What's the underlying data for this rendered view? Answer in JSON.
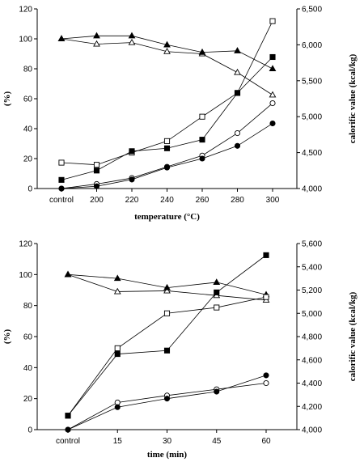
{
  "chart_data": [
    {
      "type": "line",
      "categories": [
        "control",
        "200",
        "220",
        "240",
        "260",
        "280",
        "300"
      ],
      "xlabel": "temperature (°C)",
      "ylabel": "(%)",
      "ylabel_right": "calorific value (kcal/kg)",
      "ylim": [
        0,
        120
      ],
      "ylim_right": [
        4000,
        6500
      ],
      "yticks": [
        "0",
        "20",
        "40",
        "60",
        "80",
        "100",
        "120"
      ],
      "yticks_right": [
        "4,000",
        "4,500",
        "5,000",
        "5,500",
        "6,000",
        "6,500"
      ],
      "grid": false,
      "series": [
        {
          "marker": "open-triangle",
          "axis": "left",
          "values": [
            100,
            96.5,
            97.5,
            91.5,
            90,
            77.5,
            62.5
          ]
        },
        {
          "marker": "filled-triangle",
          "axis": "left",
          "values": [
            100,
            102,
            102,
            96,
            91,
            92,
            80
          ]
        },
        {
          "marker": "open-circle",
          "axis": "left",
          "values": [
            0,
            3,
            7,
            14.5,
            22,
            37,
            57
          ]
        },
        {
          "marker": "filled-circle",
          "axis": "left",
          "values": [
            0,
            1.5,
            6,
            14,
            20,
            28.5,
            43.5
          ]
        },
        {
          "marker": "open-square",
          "axis": "right",
          "values": [
            4360,
            4330,
            4500,
            4660,
            5000,
            5330,
            6330
          ]
        },
        {
          "marker": "filled-square",
          "axis": "right",
          "values": [
            4120,
            4250,
            4520,
            4560,
            4680,
            5330,
            5830
          ]
        }
      ]
    },
    {
      "type": "line",
      "categories": [
        "control",
        "15",
        "30",
        "45",
        "60"
      ],
      "xlabel": "time (min)",
      "ylabel": "(%)",
      "ylabel_right": "calorific value (kcal/kg)",
      "ylim": [
        0,
        120
      ],
      "ylim_right": [
        4000,
        5600
      ],
      "yticks": [
        "0",
        "20",
        "40",
        "60",
        "80",
        "100",
        "120"
      ],
      "yticks_right": [
        "4,000",
        "4,200",
        "4,400",
        "4,600",
        "4,800",
        "5,000",
        "5,200",
        "5,400",
        "5,600"
      ],
      "grid": false,
      "series": [
        {
          "marker": "open-triangle",
          "axis": "left",
          "values": [
            100,
            89,
            89.5,
            86.5,
            83.5
          ]
        },
        {
          "marker": "filled-triangle",
          "axis": "left",
          "values": [
            100,
            97.5,
            91.5,
            95,
            87
          ]
        },
        {
          "marker": "open-circle",
          "axis": "left",
          "values": [
            0,
            17.5,
            22,
            26,
            30
          ]
        },
        {
          "marker": "filled-circle",
          "axis": "left",
          "values": [
            0,
            14.5,
            20,
            24.5,
            35
          ]
        },
        {
          "marker": "open-square",
          "axis": "right",
          "values": [
            4120,
            4700,
            5000,
            5050,
            5140
          ]
        },
        {
          "marker": "filled-square",
          "axis": "right",
          "values": [
            4120,
            4650,
            4680,
            5180,
            5500
          ]
        }
      ]
    }
  ]
}
